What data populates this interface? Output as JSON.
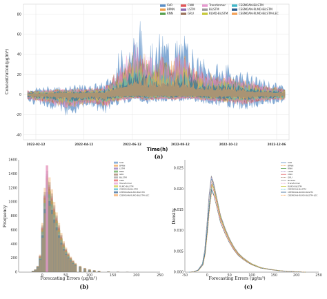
{
  "colors": {
    "SVR": "#5b8fc7",
    "BPNN": "#f0a04b",
    "RNN": "#59a14f",
    "CNN": "#e15759",
    "LSTM": "#8c6bb1",
    "GRU": "#9c755f",
    "Transformer": "#e69ad0",
    "BiLSTM": "#9a9a9a",
    "RLMD-BiLSTM": "#c7c93a",
    "CEEMDAN-BiLSTM": "#43b8c9",
    "CEEMDAN-RLMD-BiLSTM": "#2c5d8f",
    "CEEMDAN-RLMD-BiLSTM-LEC": "#f4a259"
  },
  "chart_data": [
    {
      "panel": "(a)",
      "type": "line",
      "xlabel": "Time(h)",
      "ylabel": "Concentration(μg/m³)",
      "ylim": [
        -45,
        90
      ],
      "yticks": [
        -40,
        -20,
        0,
        20,
        40,
        60,
        80
      ],
      "xtick_labels": [
        "2022-02-12",
        "2022-04-12",
        "2022-06-12",
        "2022-08-12",
        "2022-10-12",
        "2022-12-06"
      ],
      "grid": true,
      "legend_position": "top-right",
      "legend_columns": [
        [
          "SVR",
          "BPNN",
          "RNN"
        ],
        [
          "CNN",
          "LSTM",
          "GRU"
        ],
        [
          "Transformer",
          "BiLSTM",
          "RLMD-BiLSTM"
        ],
        [
          "CEEMDAN-BiLSTM",
          "CEEMDAN-RLMD-BiLSTM",
          "CEEMDAN-RLMD-BiLSTM-LEC"
        ]
      ],
      "series_order": [
        "SVR",
        "BPNN",
        "RNN",
        "CNN",
        "LSTM",
        "GRU",
        "Transformer",
        "BiLSTM",
        "RLMD-BiLSTM",
        "CEEMDAN-BiLSTM",
        "CEEMDAN-RLMD-BiLSTM",
        "CEEMDAN-RLMD-BiLSTM-LEC"
      ],
      "envelope": {
        "description_points": "upper and lower error envelope per period, data units",
        "x": [
          0,
          0.05,
          0.1,
          0.15,
          0.2,
          0.25,
          0.3,
          0.33,
          0.36,
          0.4,
          0.43,
          0.46,
          0.5,
          0.53,
          0.56,
          0.6,
          0.63,
          0.66,
          0.7,
          0.75,
          0.8,
          0.85,
          0.9,
          0.95,
          1.0
        ],
        "upper": [
          6,
          7,
          8,
          9,
          9,
          10,
          12,
          25,
          40,
          62,
          72,
          55,
          48,
          65,
          50,
          60,
          52,
          38,
          33,
          30,
          27,
          22,
          16,
          12,
          10
        ],
        "lower": [
          -8,
          -12,
          -15,
          -22,
          -18,
          -14,
          -20,
          -14,
          -10,
          -8,
          -6,
          -10,
          -8,
          -7,
          -9,
          -7,
          -6,
          -8,
          -10,
          -12,
          -14,
          -16,
          -12,
          -10,
          -8
        ]
      }
    },
    {
      "panel": "(b)",
      "type": "bar",
      "xlabel": "Forecasting Errors",
      "xlabel_unit": "(μg/m³)",
      "ylabel": "Frequency",
      "xlim": [
        -50,
        250
      ],
      "ylim": [
        0,
        1600
      ],
      "xticks": [
        0,
        50,
        100,
        150,
        200,
        250
      ],
      "yticks": [
        0,
        200,
        400,
        600,
        800,
        1000,
        1200,
        1400,
        1600
      ],
      "legend_position": "top-right",
      "legend": [
        "SVR",
        "BPNN",
        "LSTM",
        "RNN",
        "GRU",
        "BiLSTM",
        "CNN",
        "Transformer",
        "RLMD-BiLSTM",
        "CEEMDAN-BiLSTM",
        "CEEMDAN-RLMD-BiLSTM",
        "CEEMDAN-RLMD-BiLSTM-LEC"
      ],
      "bin_centers": [
        -20,
        -15,
        -10,
        -5,
        0,
        5,
        10,
        15,
        20,
        25,
        30,
        35,
        40,
        45,
        50,
        55,
        60,
        65,
        70,
        80,
        90,
        100,
        110,
        120,
        140,
        160,
        180
      ],
      "values": [
        20,
        40,
        90,
        250,
        700,
        1200,
        1520,
        1350,
        1180,
        1000,
        850,
        700,
        560,
        440,
        350,
        280,
        220,
        170,
        130,
        90,
        60,
        40,
        28,
        18,
        10,
        6,
        3
      ]
    },
    {
      "panel": "(c)",
      "type": "line",
      "xlabel": "Forecasting Errors",
      "xlabel_unit": "(μg/m³)",
      "ylabel": "Density",
      "xlim": [
        -50,
        250
      ],
      "ylim": [
        0,
        0.027
      ],
      "xticks": [
        -50,
        0,
        50,
        100,
        150,
        200,
        250
      ],
      "yticks": [
        0.0,
        0.005,
        0.01,
        0.015,
        0.02,
        0.025
      ],
      "ytick_labels": [
        "0.000",
        "0.005",
        "0.010",
        "0.015",
        "0.020",
        "0.025"
      ],
      "legend_position": "top-right",
      "legend": [
        "SVR",
        "BPNN",
        "RNN",
        "LSTM",
        "CNN",
        "GRU",
        "BiLSTM",
        "Transformer",
        "RLMD-BiLSTM",
        "CEEMDAN-BiLSTM",
        "CEEMDAN-RLMD-BiLSTM",
        "CEEMDAN-RLMD-BiLSTM-LEC"
      ],
      "x": [
        -40,
        -30,
        -20,
        -10,
        -5,
        0,
        5,
        10,
        15,
        20,
        25,
        30,
        40,
        50,
        60,
        70,
        80,
        90,
        100,
        120,
        140,
        160,
        180,
        200,
        220
      ],
      "density": [
        0,
        0.0001,
        0.0005,
        0.002,
        0.005,
        0.011,
        0.018,
        0.0225,
        0.021,
        0.0185,
        0.016,
        0.0135,
        0.0105,
        0.008,
        0.006,
        0.0045,
        0.0035,
        0.0027,
        0.002,
        0.0011,
        0.0007,
        0.0004,
        0.0002,
        0.0001,
        0
      ]
    }
  ]
}
